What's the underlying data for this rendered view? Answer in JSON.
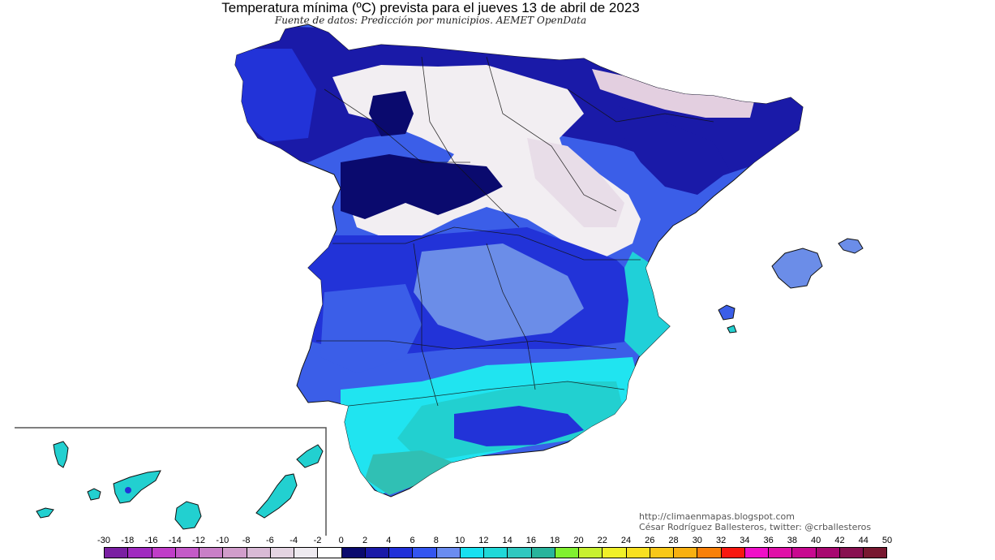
{
  "header": {
    "title": "Temperatura mínima (ºC) prevista para el jueves 13 de abril de 2023",
    "subtitle": "Fuente de datos: Predicción por municipios. AEMET OpenData"
  },
  "credits": {
    "url": "http://climaenmapas.blogspot.com",
    "author": "César Rodríguez Ballesteros, twitter: @crballesteros"
  },
  "legend": {
    "labels": [
      "-30",
      "-18",
      "-16",
      "-14",
      "-12",
      "-10",
      "-8",
      "-6",
      "-4",
      "-2",
      "0",
      "2",
      "4",
      "6",
      "8",
      "10",
      "12",
      "14",
      "16",
      "18",
      "20",
      "22",
      "24",
      "26",
      "28",
      "30",
      "32",
      "34",
      "36",
      "38",
      "40",
      "42",
      "44",
      "50"
    ],
    "colors": [
      "#7a1fa2",
      "#a02ac0",
      "#c03dc8",
      "#c45ac8",
      "#c97fc7",
      "#d19dcb",
      "#d9bad6",
      "#e4d4e2",
      "#eeeaf0",
      "#ffffff",
      "#0a0a6e",
      "#1a1aa8",
      "#2030d8",
      "#3355f0",
      "#6a8cf0",
      "#18e0f0",
      "#20d8d8",
      "#30c8c0",
      "#28b49c",
      "#80f030",
      "#c8f030",
      "#f0f028",
      "#f8e020",
      "#f8c818",
      "#f8b010",
      "#f88008",
      "#f81810",
      "#f010c8",
      "#e010a8",
      "#c80890",
      "#a80870",
      "#881050",
      "#781830"
    ]
  },
  "map": {
    "colors": {
      "below_zero": "#f2eef2",
      "cold_pink": "#e3cfe0",
      "zero_two": "#0a0a6e",
      "two_four": "#1a1aa8",
      "four_six": "#2233d8",
      "six_eight": "#3b5ee8",
      "eight_ten": "#6b8de8",
      "ten_twelve": "#20e4f0",
      "twelve_fourteen": "#22d0d0",
      "fourteen_sixteen": "#30c0b4",
      "border": "#111111"
    }
  }
}
